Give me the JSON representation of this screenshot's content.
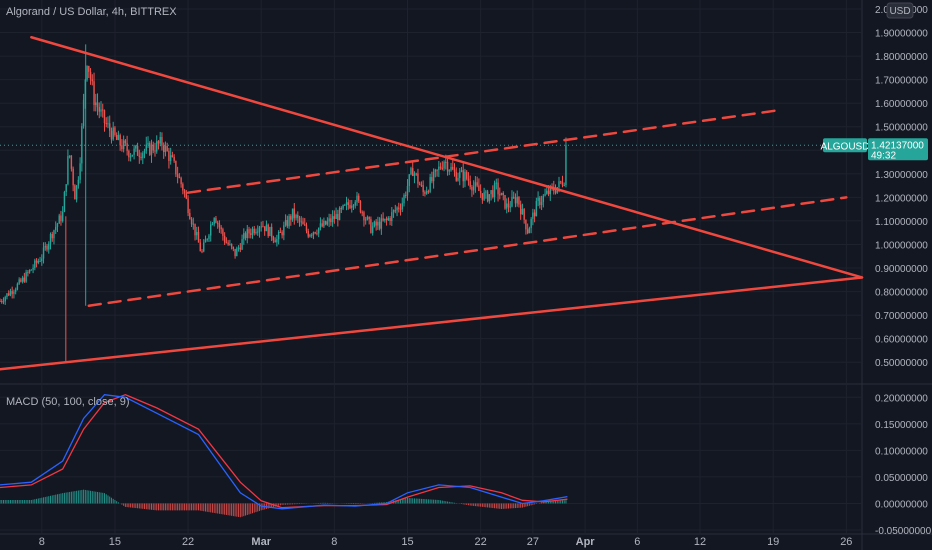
{
  "header": {
    "title": "Algorand / US Dollar, 4h, BITTREX",
    "currency_badge": "USD"
  },
  "price_badge": {
    "symbol": "ALGOUSD",
    "price": "1.42137000",
    "countdown": "49:32"
  },
  "macd_label": "MACD (50, 100, close, 9)",
  "colors": {
    "background": "#131722",
    "up": "#26a69a",
    "down": "#ef5350",
    "trendline": "#f0483e",
    "macd_line": "#2962ff",
    "signal_line": "#f23645",
    "badge": "#26a69a"
  },
  "chart_data": [
    {
      "type": "candlestick",
      "title": "Algorand / US Dollar, 4h, BITTREX",
      "y_axis_labels": [
        "2.00000000",
        "1.90000000",
        "1.80000000",
        "1.70000000",
        "1.60000000",
        "1.50000000",
        "1.40000000",
        "1.30000000",
        "1.20000000",
        "1.10000000",
        "1.00000000",
        "0.90000000",
        "0.80000000",
        "0.70000000",
        "0.60000000",
        "0.50000000"
      ],
      "ylim": [
        0.45,
        2.0
      ],
      "x_axis_labels": [
        {
          "label": "8",
          "bold": false,
          "day": 8
        },
        {
          "label": "15",
          "bold": false,
          "day": 15
        },
        {
          "label": "22",
          "bold": false,
          "day": 22
        },
        {
          "label": "Mar",
          "bold": true,
          "day": 29
        },
        {
          "label": "8",
          "bold": false,
          "day": 36
        },
        {
          "label": "15",
          "bold": false,
          "day": 43
        },
        {
          "label": "22",
          "bold": false,
          "day": 50
        },
        {
          "label": "27",
          "bold": false,
          "day": 55
        },
        {
          "label": "Apr",
          "bold": true,
          "day": 60
        },
        {
          "label": "6",
          "bold": false,
          "day": 65
        },
        {
          "label": "12",
          "bold": false,
          "day": 71
        },
        {
          "label": "19",
          "bold": false,
          "day": 78
        },
        {
          "label": "26",
          "bold": false,
          "day": 85
        }
      ],
      "x_unit": "days since Feb 1",
      "xlim": [
        4.0,
        86.5
      ],
      "last_price": 1.42137,
      "price_path": [
        [
          4.0,
          0.76
        ],
        [
          6.0,
          0.84
        ],
        [
          8.0,
          0.95
        ],
        [
          9.0,
          1.05
        ],
        [
          10.0,
          1.13
        ],
        [
          10.6,
          1.4
        ],
        [
          11.2,
          1.2
        ],
        [
          11.6,
          1.33
        ],
        [
          12.3,
          1.8
        ],
        [
          13.0,
          1.62
        ],
        [
          14.0,
          1.52
        ],
        [
          15.2,
          1.44
        ],
        [
          16.5,
          1.39
        ],
        [
          18.0,
          1.4
        ],
        [
          19.5,
          1.43
        ],
        [
          20.5,
          1.35
        ],
        [
          21.5,
          1.24
        ],
        [
          22.5,
          1.08
        ],
        [
          23.3,
          0.96
        ],
        [
          24.5,
          1.13
        ],
        [
          25.5,
          1.02
        ],
        [
          26.5,
          0.96
        ],
        [
          27.5,
          1.04
        ],
        [
          29.0,
          1.09
        ],
        [
          30.5,
          1.02
        ],
        [
          32.0,
          1.13
        ],
        [
          33.5,
          1.05
        ],
        [
          35.0,
          1.08
        ],
        [
          36.5,
          1.13
        ],
        [
          38.0,
          1.2
        ],
        [
          39.5,
          1.07
        ],
        [
          41.0,
          1.1
        ],
        [
          42.5,
          1.18
        ],
        [
          43.5,
          1.32
        ],
        [
          44.5,
          1.22
        ],
        [
          45.5,
          1.28
        ],
        [
          46.5,
          1.36
        ],
        [
          47.5,
          1.3
        ],
        [
          48.5,
          1.29
        ],
        [
          49.5,
          1.24
        ],
        [
          50.5,
          1.2
        ],
        [
          51.5,
          1.24
        ],
        [
          52.5,
          1.16
        ],
        [
          53.5,
          1.2
        ],
        [
          54.5,
          1.06
        ],
        [
          55.5,
          1.18
        ],
        [
          56.5,
          1.22
        ],
        [
          57.5,
          1.25
        ],
        [
          58.0,
          1.28
        ],
        [
          58.3,
          1.42
        ]
      ],
      "annotations": [
        {
          "kind": "solid",
          "from": [
            7.0,
            1.88
          ],
          "to": [
            86.5,
            0.86
          ]
        },
        {
          "kind": "solid",
          "from": [
            4.0,
            0.47
          ],
          "to": [
            86.5,
            0.86
          ]
        },
        {
          "kind": "dashed",
          "from": [
            12.5,
            0.74
          ],
          "to": [
            85.0,
            1.2
          ]
        },
        {
          "kind": "dashed",
          "from": [
            22.0,
            1.22
          ],
          "to": [
            78.5,
            1.57
          ]
        }
      ]
    },
    {
      "type": "macd",
      "title": "MACD (50, 100, close, 9)",
      "y_axis_labels": [
        "0.20000000",
        "0.15000000",
        "0.10000000",
        "0.05000000",
        "0.00000000",
        "-0.05000000"
      ],
      "ylim": [
        -0.05,
        0.21
      ],
      "macd_line": [
        [
          4.0,
          0.035
        ],
        [
          7.0,
          0.04
        ],
        [
          10.0,
          0.08
        ],
        [
          12.0,
          0.16
        ],
        [
          14.0,
          0.205
        ],
        [
          16.0,
          0.2
        ],
        [
          19.0,
          0.17
        ],
        [
          23.0,
          0.13
        ],
        [
          25.0,
          0.075
        ],
        [
          27.0,
          0.02
        ],
        [
          29.0,
          -0.005
        ],
        [
          31.0,
          -0.01
        ],
        [
          35.0,
          -0.003
        ],
        [
          38.0,
          -0.005
        ],
        [
          41.0,
          0.0
        ],
        [
          43.0,
          0.02
        ],
        [
          46.0,
          0.035
        ],
        [
          49.0,
          0.03
        ],
        [
          52.0,
          0.012
        ],
        [
          54.0,
          0.0
        ],
        [
          56.0,
          0.005
        ],
        [
          58.3,
          0.013
        ]
      ],
      "signal_line": [
        [
          4.0,
          0.03
        ],
        [
          7.0,
          0.035
        ],
        [
          10.0,
          0.065
        ],
        [
          12.0,
          0.14
        ],
        [
          14.0,
          0.19
        ],
        [
          16.0,
          0.205
        ],
        [
          19.0,
          0.18
        ],
        [
          23.0,
          0.14
        ],
        [
          25.0,
          0.09
        ],
        [
          27.0,
          0.04
        ],
        [
          29.0,
          0.005
        ],
        [
          31.0,
          -0.008
        ],
        [
          35.0,
          -0.004
        ],
        [
          38.0,
          -0.004
        ],
        [
          41.0,
          -0.002
        ],
        [
          43.0,
          0.012
        ],
        [
          46.0,
          0.03
        ],
        [
          49.0,
          0.033
        ],
        [
          52.0,
          0.02
        ],
        [
          54.0,
          0.006
        ],
        [
          56.0,
          0.003
        ],
        [
          58.3,
          0.008
        ]
      ]
    }
  ]
}
